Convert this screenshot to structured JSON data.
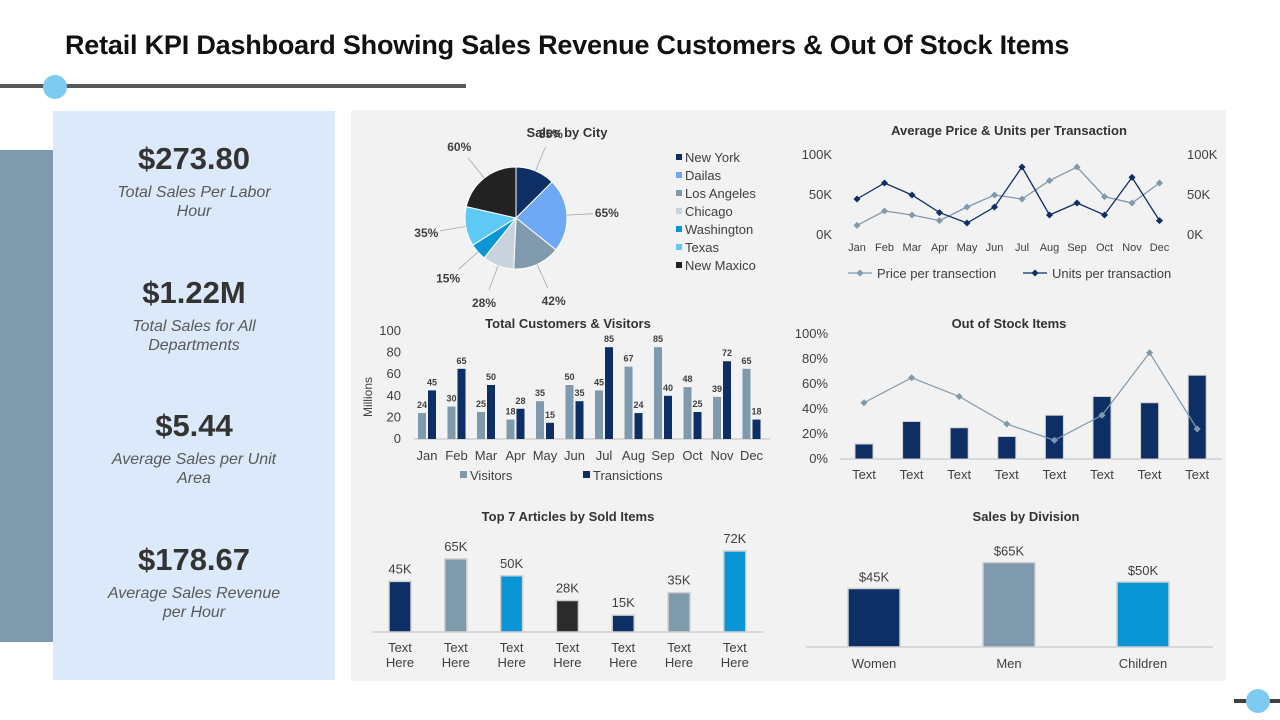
{
  "page": {
    "title": "Retail KPI Dashboard Showing Sales Revenue Customers & Out Of Stock Items"
  },
  "kpis": [
    {
      "value": "$273.80",
      "label": "Total Sales Per Labor Hour"
    },
    {
      "value": "$1.22M",
      "label": "Total Sales for All Departments"
    },
    {
      "value": "$5.44",
      "label": "Average Sales per Unit Area"
    },
    {
      "value": "$178.67",
      "label": "Average Sales Revenue per Hour"
    }
  ],
  "colors": {
    "navy": "#0d2f66",
    "blue": "#6fa8f5",
    "slate": "#7f99ad",
    "light": "#c9d3dd",
    "cyan": "#0a96d4",
    "sky": "#5fc8f5",
    "dark": "#222222"
  },
  "chart_data": [
    {
      "type": "pie",
      "title": "Sales by City",
      "slices": [
        {
          "name": "New York",
          "label": "35%",
          "value": 35,
          "color": "#0d2f66"
        },
        {
          "name": "Dailas",
          "label": "65%",
          "value": 65,
          "color": "#6fa8f5"
        },
        {
          "name": "Los Angeles",
          "label": "42%",
          "value": 42,
          "color": "#7f99ad"
        },
        {
          "name": "Chicago",
          "label": "28%",
          "value": 28,
          "color": "#c9d3dd"
        },
        {
          "name": "Washington",
          "label": "15%",
          "value": 15,
          "color": "#0a96d4"
        },
        {
          "name": "Texas",
          "label": "35%",
          "value": 35,
          "color": "#5fc8f5"
        },
        {
          "name": "New Maxico",
          "label": "60%",
          "value": 60,
          "color": "#222222"
        }
      ],
      "legend": "right"
    },
    {
      "type": "line",
      "title": "Average Price & Units per Transaction",
      "categories": [
        "Jan",
        "Feb",
        "Mar",
        "Apr",
        "May",
        "Jun",
        "Jul",
        "Aug",
        "Sep",
        "Oct",
        "Nov",
        "Dec"
      ],
      "yticks_left": [
        "100K",
        "50K",
        "0K"
      ],
      "yticks_right": [
        "100K",
        "50K",
        "0K"
      ],
      "ylim": [
        0,
        100000
      ],
      "series": [
        {
          "name": "Price per transection",
          "color": "#7f99ad",
          "values": [
            12000,
            30000,
            25000,
            18000,
            35000,
            50000,
            45000,
            68000,
            85000,
            48000,
            40000,
            65000
          ]
        },
        {
          "name": "Units per transaction",
          "color": "#0d2f66",
          "values": [
            45000,
            65000,
            50000,
            28000,
            15000,
            35000,
            85000,
            25000,
            40000,
            25000,
            72000,
            18000
          ]
        }
      ],
      "legend": "bottom"
    },
    {
      "type": "bar",
      "title": "Total Customers & Visitors",
      "ylabel": "Millions",
      "categories": [
        "Jan",
        "Feb",
        "Mar",
        "Apr",
        "May",
        "Jun",
        "Jul",
        "Aug",
        "Sep",
        "Oct",
        "Nov",
        "Dec"
      ],
      "yticks": [
        "0",
        "20",
        "40",
        "60",
        "80",
        "100"
      ],
      "ylim": [
        0,
        100
      ],
      "series": [
        {
          "name": "Visitors",
          "color": "#7f99ad",
          "values": [
            24,
            30,
            25,
            18,
            35,
            50,
            45,
            67,
            85,
            48,
            39,
            65
          ]
        },
        {
          "name": "Transictions",
          "color": "#0d2f66",
          "values": [
            45,
            65,
            50,
            28,
            15,
            35,
            85,
            24,
            40,
            25,
            72,
            18
          ]
        }
      ],
      "legend": "bottom"
    },
    {
      "type": "bar",
      "title": "Out of Stock Items",
      "categories": [
        "Text",
        "Text",
        "Text",
        "Text",
        "Text",
        "Text",
        "Text",
        "Text"
      ],
      "yticks": [
        "0%",
        "20%",
        "40%",
        "60%",
        "80%",
        "100%"
      ],
      "ylim": [
        0,
        100
      ],
      "series": [
        {
          "name": "",
          "color": "#0d2f66",
          "values": [
            12,
            30,
            25,
            18,
            35,
            50,
            45,
            67
          ]
        },
        {
          "name": "",
          "color": "#7f99ad",
          "values": [
            45,
            65,
            50,
            28,
            15,
            35,
            85,
            24
          ]
        }
      ]
    },
    {
      "type": "bar",
      "title": "Top 7 Articles by Sold Items",
      "categories": [
        "Text Here",
        "Text Here",
        "Text Here",
        "Text Here",
        "Text Here",
        "Text Here",
        "Text Here"
      ],
      "ylim": [
        0,
        80
      ],
      "bars": [
        {
          "value": 45,
          "label": "45K",
          "color": "#0d2f66"
        },
        {
          "value": 65,
          "label": "65K",
          "color": "#7f99ad"
        },
        {
          "value": 50,
          "label": "50K",
          "color": "#0a96d4"
        },
        {
          "value": 28,
          "label": "28K",
          "color": "#2b2b2b"
        },
        {
          "value": 15,
          "label": "15K",
          "color": "#0d2f66"
        },
        {
          "value": 35,
          "label": "35K",
          "color": "#7f99ad"
        },
        {
          "value": 72,
          "label": "72K",
          "color": "#0a96d4"
        }
      ]
    },
    {
      "type": "bar",
      "title": "Sales by Division",
      "categories": [
        "Women",
        "Men",
        "Children"
      ],
      "ylim": [
        0,
        70
      ],
      "bars": [
        {
          "value": 45,
          "label": "$45K",
          "color": "#0d2f66"
        },
        {
          "value": 65,
          "label": "$65K",
          "color": "#7f99ad"
        },
        {
          "value": 50,
          "label": "$50K",
          "color": "#0a96d4"
        }
      ]
    }
  ]
}
